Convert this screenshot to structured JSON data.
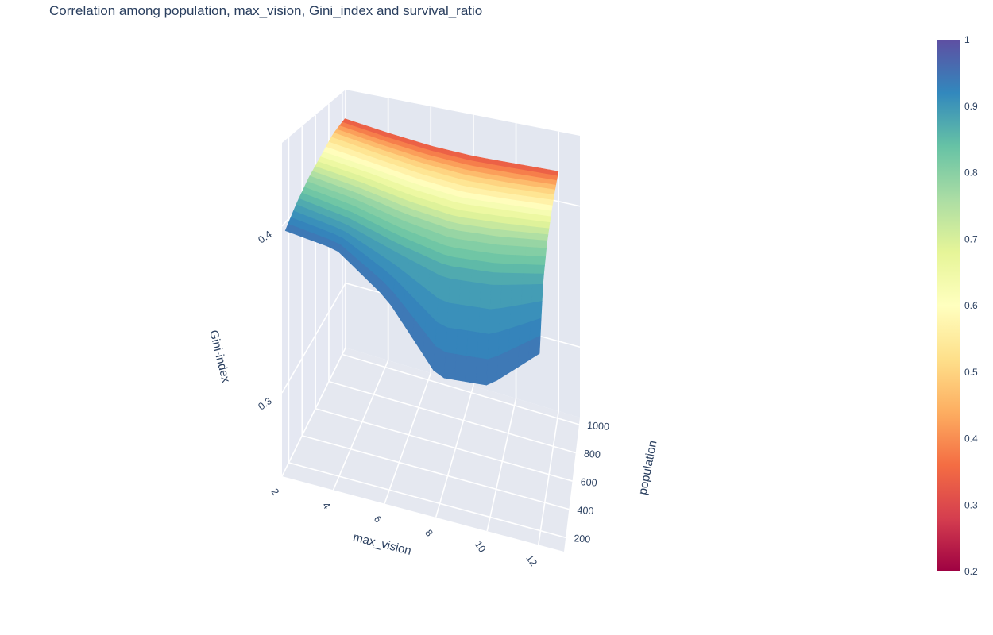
{
  "chart_data": {
    "type": "surface3d",
    "title": "Correlation among population, max_vision, Gini_index and survival_ratio",
    "x_axis": {
      "label": "max_vision",
      "range": [
        2,
        13
      ],
      "ticks": [
        "2",
        "4",
        "6",
        "8",
        "10",
        "12"
      ]
    },
    "y_axis": {
      "label": "population",
      "range": [
        100,
        1050
      ],
      "ticks": [
        "200",
        "400",
        "600",
        "800",
        "1000"
      ]
    },
    "z_axis": {
      "label": "Gini-index",
      "range": [
        0.25,
        0.45
      ],
      "ticks": [
        "0.3",
        "0.4"
      ]
    },
    "colorbar": {
      "title": "",
      "range": [
        0.2,
        1
      ],
      "ticks": [
        "0.2",
        "0.3",
        "0.4",
        "0.5",
        "0.6",
        "0.7",
        "0.8",
        "0.9",
        "1"
      ],
      "colorscale": "Spectral",
      "colors": [
        "#9e0142",
        "#d53e4f",
        "#f46d43",
        "#fdae61",
        "#fee08b",
        "#ffffbf",
        "#e6f598",
        "#abdda4",
        "#66c2a5",
        "#3288bd",
        "#5e4fa2"
      ]
    },
    "surface_z_by_max_vision": [
      {
        "max_vision": 2,
        "gini_index": [
          0.395,
          0.404,
          0.412,
          0.418,
          0.425,
          0.428
        ]
      },
      {
        "max_vision": 4,
        "gini_index": [
          0.39,
          0.398,
          0.407,
          0.414,
          0.42,
          0.424
        ]
      },
      {
        "max_vision": 6,
        "gini_index": [
          0.367,
          0.388,
          0.4,
          0.409,
          0.416,
          0.421
        ]
      },
      {
        "max_vision": 8,
        "gini_index": [
          0.328,
          0.38,
          0.396,
          0.406,
          0.414,
          0.42
        ]
      },
      {
        "max_vision": 10,
        "gini_index": [
          0.33,
          0.382,
          0.398,
          0.408,
          0.415,
          0.421
        ]
      },
      {
        "max_vision": 12,
        "gini_index": [
          0.355,
          0.388,
          0.402,
          0.41,
          0.417,
          0.422
        ]
      }
    ],
    "surface_population_samples": [
      150,
      320,
      500,
      680,
      860,
      1040
    ],
    "survival_ratio_by_population": [
      {
        "population": 150,
        "survival_ratio": 0.95
      },
      {
        "population": 320,
        "survival_ratio": 0.88
      },
      {
        "population": 500,
        "survival_ratio": 0.78
      },
      {
        "population": 680,
        "survival_ratio": 0.64
      },
      {
        "population": 860,
        "survival_ratio": 0.5
      },
      {
        "population": 1040,
        "survival_ratio": 0.32
      }
    ]
  }
}
